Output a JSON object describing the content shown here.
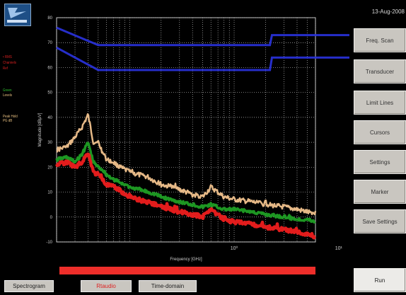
{
  "header": {
    "date": "13-Aug-2008"
  },
  "left_panel": {
    "legend_lines": [
      {
        "text": "• RMS",
        "color": "#d82020"
      },
      {
        "text": "Channels",
        "color": "#d82020"
      },
      {
        "text": "Ref",
        "color": "#d82020"
      },
      {
        "text": "Green",
        "color": "#2fbf2f"
      },
      {
        "text": "Levels",
        "color": "#e8c080"
      },
      {
        "text": "Peak Hold",
        "color": "#e8c080"
      },
      {
        "text": "PG dB",
        "color": "#e8c080"
      }
    ]
  },
  "right_panel": {
    "buttons": [
      "Freq. Scan",
      "Transducer",
      "Limit Lines",
      "Cursors",
      "Settings",
      "Marker",
      "Save Settings"
    ],
    "run_label": "Run"
  },
  "tabs": [
    "Spectrogram",
    "Rtaudio",
    "Time-domain"
  ],
  "progress": 1.0,
  "colors": {
    "limit": "#2a33e0",
    "trace_peak": "#f2c38e",
    "trace_green": "#1f9e24",
    "trace_red": "#ee1e1e",
    "progress": "#ee2e2a"
  },
  "chart_data": {
    "type": "line",
    "title": "",
    "xlabel": "Frequency [GHz]",
    "ylabel": "Magnitude [dBµV]",
    "xscale": "log",
    "xlim": [
      0.02,
      6
    ],
    "ylim": [
      -10,
      80
    ],
    "yticks": [
      80,
      70,
      60,
      50,
      40,
      30,
      20,
      10,
      0,
      -10
    ],
    "xtick_labels": [
      "10⁰",
      "10¹"
    ],
    "grid": true,
    "limit_lines": [
      {
        "x": [
          0.02,
          0.05,
          0.06,
          0.3,
          2.2,
          2.3,
          4.0,
          6.0
        ],
        "y": [
          76,
          69,
          69,
          69,
          69,
          73,
          73,
          73
        ]
      },
      {
        "x": [
          0.02,
          0.05,
          0.06,
          0.3,
          2.2,
          2.3,
          4.0,
          6.0
        ],
        "y": [
          68,
          59,
          59,
          59,
          59,
          64,
          64,
          64
        ]
      }
    ],
    "series": [
      {
        "role": "peak",
        "x": [
          0.02,
          0.025,
          0.03,
          0.035,
          0.04,
          0.045,
          0.05,
          0.055,
          0.06,
          0.07,
          0.08,
          0.09,
          0.1,
          0.12,
          0.15,
          0.18,
          0.2,
          0.25,
          0.3,
          0.4,
          0.5,
          0.6,
          0.8,
          1.0,
          1.5,
          2.0,
          3.0,
          4.0,
          5.0,
          6.0
        ],
        "y": [
          27,
          28,
          32,
          36,
          41,
          30,
          30,
          26,
          23,
          22,
          20,
          19,
          18,
          17,
          16,
          14,
          13,
          12,
          11,
          9,
          8,
          12,
          8,
          7,
          6,
          5,
          4,
          3,
          2,
          1
        ]
      },
      {
        "role": "green",
        "x": [
          0.02,
          0.025,
          0.03,
          0.035,
          0.04,
          0.045,
          0.05,
          0.055,
          0.06,
          0.07,
          0.08,
          0.09,
          0.1,
          0.12,
          0.15,
          0.18,
          0.2,
          0.25,
          0.3,
          0.4,
          0.5,
          0.6,
          0.8,
          1.0,
          1.5,
          2.0,
          3.0,
          4.0,
          5.0,
          6.0
        ],
        "y": [
          23,
          24,
          22,
          25,
          30,
          22,
          20,
          19,
          17,
          15,
          14,
          13,
          12,
          11,
          10,
          9,
          8,
          7,
          6,
          5,
          4,
          5,
          3,
          3,
          2,
          1,
          0,
          -1,
          -1,
          -2
        ]
      },
      {
        "role": "red",
        "x": [
          0.02,
          0.025,
          0.03,
          0.035,
          0.04,
          0.045,
          0.05,
          0.055,
          0.06,
          0.07,
          0.08,
          0.09,
          0.1,
          0.12,
          0.15,
          0.18,
          0.2,
          0.25,
          0.3,
          0.4,
          0.5,
          0.6,
          0.8,
          1.0,
          1.5,
          2.0,
          3.0,
          4.0,
          5.0,
          6.0
        ],
        "y": [
          21,
          22,
          20,
          22,
          26,
          18,
          17,
          15,
          13,
          12,
          11,
          9,
          8,
          7,
          6,
          5,
          4,
          3,
          2,
          1,
          0,
          3,
          -1,
          -2,
          -3,
          -4,
          -5,
          -6,
          -7,
          -8
        ]
      }
    ]
  }
}
